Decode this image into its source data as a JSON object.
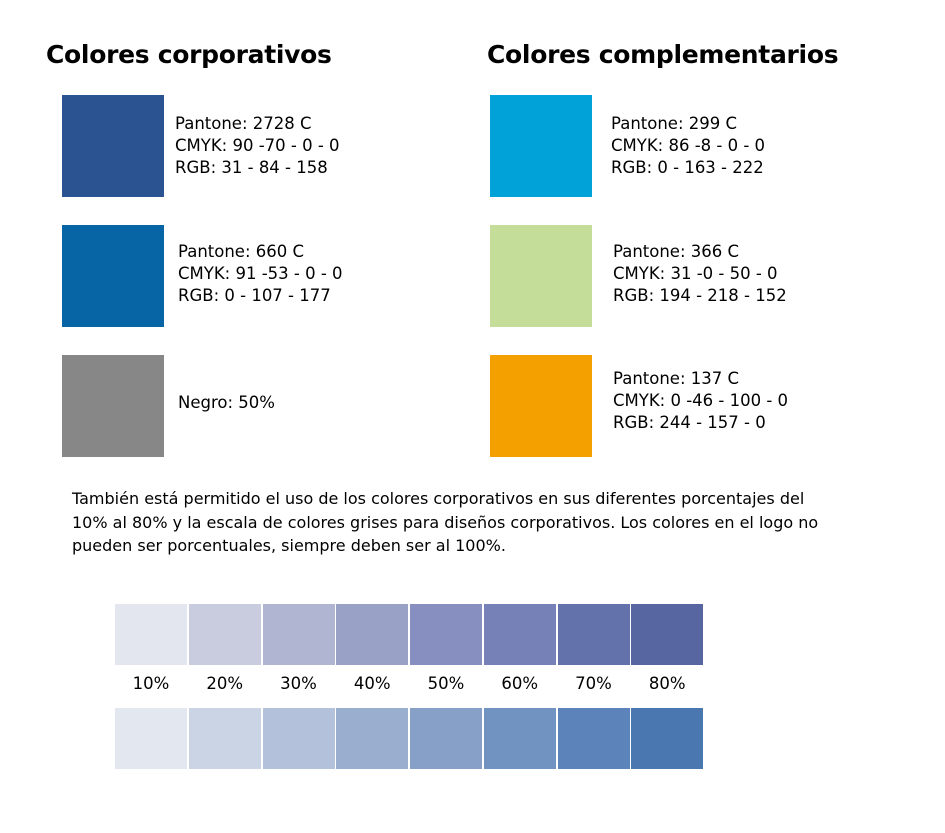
{
  "corporate": {
    "title": "Colores corporativos",
    "items": [
      {
        "color": "#2b5391",
        "lines": [
          "Pantone: 2728 C",
          "CMYK: 90 -70 - 0 - 0",
          "RGB: 31 - 84 - 158"
        ]
      },
      {
        "color": "#0765a5",
        "lines": [
          "Pantone: 660 C",
          "CMYK: 91 -53 - 0 - 0",
          "RGB: 0 - 107 - 177"
        ]
      },
      {
        "color": "#878787",
        "lines": [
          "Negro: 50%"
        ]
      }
    ]
  },
  "complementary": {
    "title": "Colores complementarios",
    "items": [
      {
        "color": "#00a2d7",
        "lines": [
          "Pantone: 299 C",
          "CMYK: 86 -8 - 0 - 0",
          "RGB: 0 - 163 - 222"
        ]
      },
      {
        "color": "#c4dd98",
        "lines": [
          "Pantone: 366 C",
          "CMYK: 31 -0 - 50 - 0",
          "RGB: 194 - 218 - 152"
        ]
      },
      {
        "color": "#f4a000",
        "lines": [
          "Pantone: 137 C",
          "CMYK: 0 -46 - 100 - 0",
          "RGB: 244 - 157 - 0"
        ]
      }
    ]
  },
  "note": "También está permitido el uso de los colores corporativos en sus diferentes porcentajes del 10% al 80% y la escala de colores grises para diseños corporativos. Los colores en el logo no pueden ser porcentuales, siempre deben ser al 100%.",
  "percentages": [
    "10%",
    "20%",
    "30%",
    "40%",
    "50%",
    "60%",
    "70%",
    "80%"
  ],
  "scale_top_colors": [
    "#e4e6ef",
    "#c9cbde",
    "#b0b5d2",
    "#9aa1c6",
    "#868fbf",
    "#7682b7",
    "#6472ab",
    "#5766a1"
  ],
  "scale_bottom_colors": [
    "#e3e7f0",
    "#cad4e4",
    "#b3c2da",
    "#9aaed0",
    "#86a0c8",
    "#7093c1",
    "#5d84ba",
    "#4b77b0"
  ]
}
